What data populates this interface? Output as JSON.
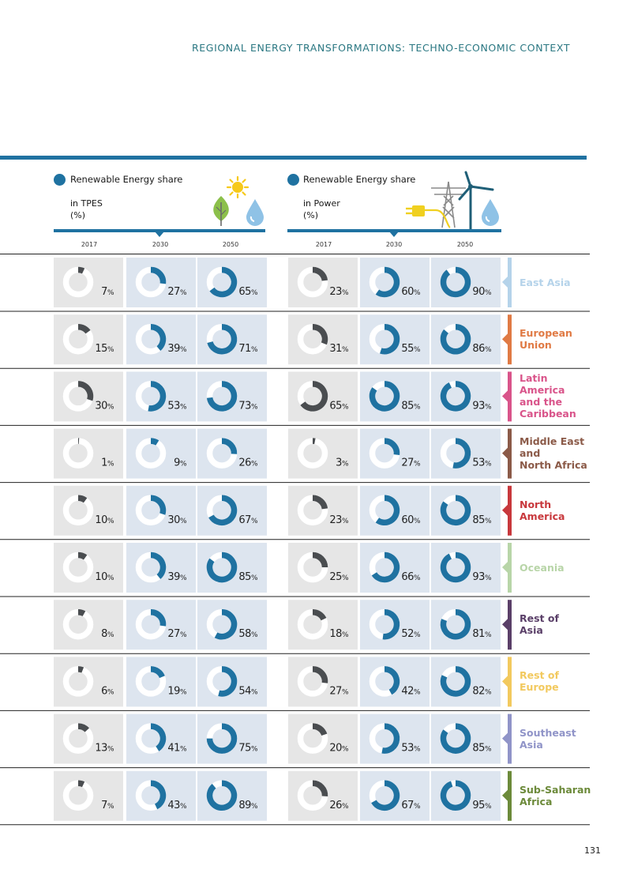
{
  "header": {
    "running_title": "REGIONAL ENERGY TRANSFORMATIONS: TECHNO-ECONOMIC CONTEXT",
    "page_number": "131"
  },
  "legends": {
    "tpes": {
      "title": "Renewable Energy share",
      "subtitle": "in TPES\n(%)"
    },
    "power": {
      "title": "Renewable Energy share",
      "subtitle": "in Power\n(%)"
    }
  },
  "icons": {
    "tpes": [
      "sun-icon",
      "leaf-icon",
      "water-drop-icon"
    ],
    "power": [
      "power-pylon-icon",
      "plug-icon",
      "wind-turbine-icon",
      "water-drop-icon"
    ]
  },
  "colors": {
    "accent": "#1f72a1",
    "dark_share": "#4a4d50",
    "panel_grey": "#e6e6e6",
    "panel_blue": "#dde5ef",
    "title_teal": "#2a7782"
  },
  "chart_data": {
    "type": "donut-grid",
    "years": [
      "2017",
      "2030",
      "2050"
    ],
    "groups": [
      "Renewable Energy share in TPES (%)",
      "Renewable Energy share in Power (%)"
    ],
    "unit": "%",
    "regions": [
      {
        "name": "East Asia",
        "label": "East Asia",
        "color": "#b5d3ea",
        "tpes": [
          7,
          27,
          65
        ],
        "power": [
          23,
          60,
          90
        ]
      },
      {
        "name": "European Union",
        "label": "European\nUnion",
        "color": "#e07a44",
        "tpes": [
          15,
          39,
          71
        ],
        "power": [
          31,
          55,
          86
        ]
      },
      {
        "name": "Latin America and the Caribbean",
        "label": "Latin\nAmerica\nand the\nCaribbean",
        "color": "#d9548a",
        "tpes": [
          30,
          53,
          73
        ],
        "power": [
          65,
          85,
          93
        ]
      },
      {
        "name": "Middle East and North Africa",
        "label": "Middle East\nand\n North Africa",
        "color": "#8b5a48",
        "tpes": [
          1,
          9,
          26
        ],
        "power": [
          3,
          27,
          53
        ]
      },
      {
        "name": "North America",
        "label": "North\nAmerica",
        "color": "#c8383c",
        "tpes": [
          10,
          30,
          67
        ],
        "power": [
          23,
          60,
          85
        ]
      },
      {
        "name": "Oceania",
        "label": "Oceania",
        "color": "#b8d5a8",
        "tpes": [
          10,
          39,
          85
        ],
        "power": [
          25,
          66,
          93
        ]
      },
      {
        "name": "Rest of Asia",
        "label": "Rest of\nAsia",
        "color": "#5a3f68",
        "tpes": [
          8,
          27,
          58
        ],
        "power": [
          18,
          52,
          81
        ]
      },
      {
        "name": "Rest of Europe",
        "label": "Rest of\nEurope",
        "color": "#f2c95e",
        "tpes": [
          6,
          19,
          54
        ],
        "power": [
          27,
          42,
          82
        ]
      },
      {
        "name": "Southeast Asia",
        "label": "Southeast\nAsia",
        "color": "#9094c8",
        "tpes": [
          13,
          41,
          75
        ],
        "power": [
          20,
          53,
          85
        ]
      },
      {
        "name": "Sub-Saharan Africa",
        "label": "Sub-Saharan\nAfrica",
        "color": "#6c8a3a",
        "tpes": [
          7,
          43,
          89
        ],
        "power": [
          26,
          67,
          95
        ]
      }
    ]
  }
}
